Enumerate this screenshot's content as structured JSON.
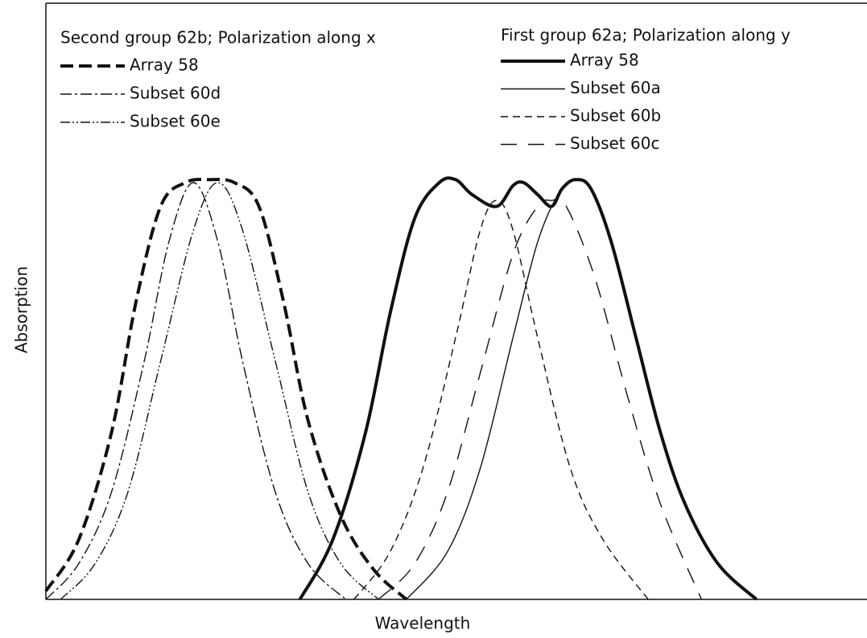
{
  "chart_data": {
    "type": "line",
    "xlabel": "Wavelength",
    "ylabel": "Absorption",
    "xlim": [
      0,
      100
    ],
    "ylim": [
      0,
      100
    ],
    "legends": [
      {
        "title": "Second group 62b; Polarization along x",
        "series": [
          0,
          1,
          2
        ]
      },
      {
        "title": "First group 62a; Polarization along y",
        "series": [
          3,
          4,
          5,
          6
        ]
      }
    ],
    "series": [
      {
        "name": "Array 58",
        "color": "#111",
        "width": 4,
        "dash": "16,7",
        "x": [
          0,
          4,
          8,
          11,
          14,
          17,
          20,
          23,
          26,
          29,
          32,
          36,
          40,
          44
        ],
        "values": [
          1.4,
          10,
          28,
          50,
          66,
          70,
          70.5,
          70,
          66,
          50,
          30,
          14,
          5,
          0
        ]
      },
      {
        "name": "Subset 60d",
        "color": "#111",
        "width": 1.4,
        "dash": "14,4,3,4",
        "x": [
          0,
          4,
          8,
          12,
          15,
          18,
          21,
          24,
          28,
          32,
          36.6
        ],
        "values": [
          0,
          6,
          18,
          40,
          60,
          70,
          60,
          40,
          18,
          6,
          0
        ]
      },
      {
        "name": "Subset 60e",
        "color": "#111",
        "width": 1.4,
        "dash": "12,3,2,3,2,3",
        "x": [
          1.8,
          6,
          10,
          14,
          18,
          21,
          24,
          28,
          32,
          36,
          40.6
        ],
        "values": [
          0,
          6,
          18,
          40,
          62,
          70,
          62,
          40,
          18,
          6,
          0
        ]
      },
      {
        "name": "Array 58",
        "color": "#111",
        "width": 4,
        "dash": "none",
        "x": [
          31,
          35,
          39,
          42,
          45,
          48,
          50,
          52,
          55,
          57,
          58.3,
          60,
          61.7,
          63,
          64.6,
          66.5,
          69,
          72,
          75,
          78,
          82,
          86.7
        ],
        "values": [
          0,
          10,
          28,
          48,
          64,
          70,
          70.5,
          68,
          66,
          69.5,
          70,
          68,
          66,
          69,
          70.5,
          69,
          60,
          44,
          28,
          16,
          6,
          0
        ]
      },
      {
        "name": "Subset 60a",
        "color": "#111",
        "width": 1.4,
        "dash": "none",
        "x": [
          44,
          49,
          53,
          57,
          60,
          62.5,
          64.6,
          66.5,
          69,
          72,
          75,
          78,
          82,
          86.7
        ],
        "values": [
          0,
          8,
          22,
          44,
          60,
          68,
          70.5,
          69,
          60,
          44,
          28,
          16,
          6,
          0
        ]
      },
      {
        "name": "Subset 60b",
        "color": "#111",
        "width": 1.4,
        "dash": "9,6",
        "x": [
          37.6,
          42,
          46,
          50,
          53,
          55,
          57,
          60,
          64,
          68,
          73.5
        ],
        "values": [
          0,
          8,
          22,
          44,
          62,
          67,
          62,
          44,
          22,
          10,
          0
        ]
      },
      {
        "name": "Subset 60c",
        "color": "#111",
        "width": 1.4,
        "dash": "20,14",
        "x": [
          40.6,
          45,
          49,
          53,
          57,
          60,
          61.7,
          63.5,
          67,
          71,
          75,
          80
        ],
        "values": [
          0,
          6,
          18,
          38,
          58,
          66,
          67,
          66,
          54,
          34,
          16,
          0
        ]
      }
    ]
  }
}
